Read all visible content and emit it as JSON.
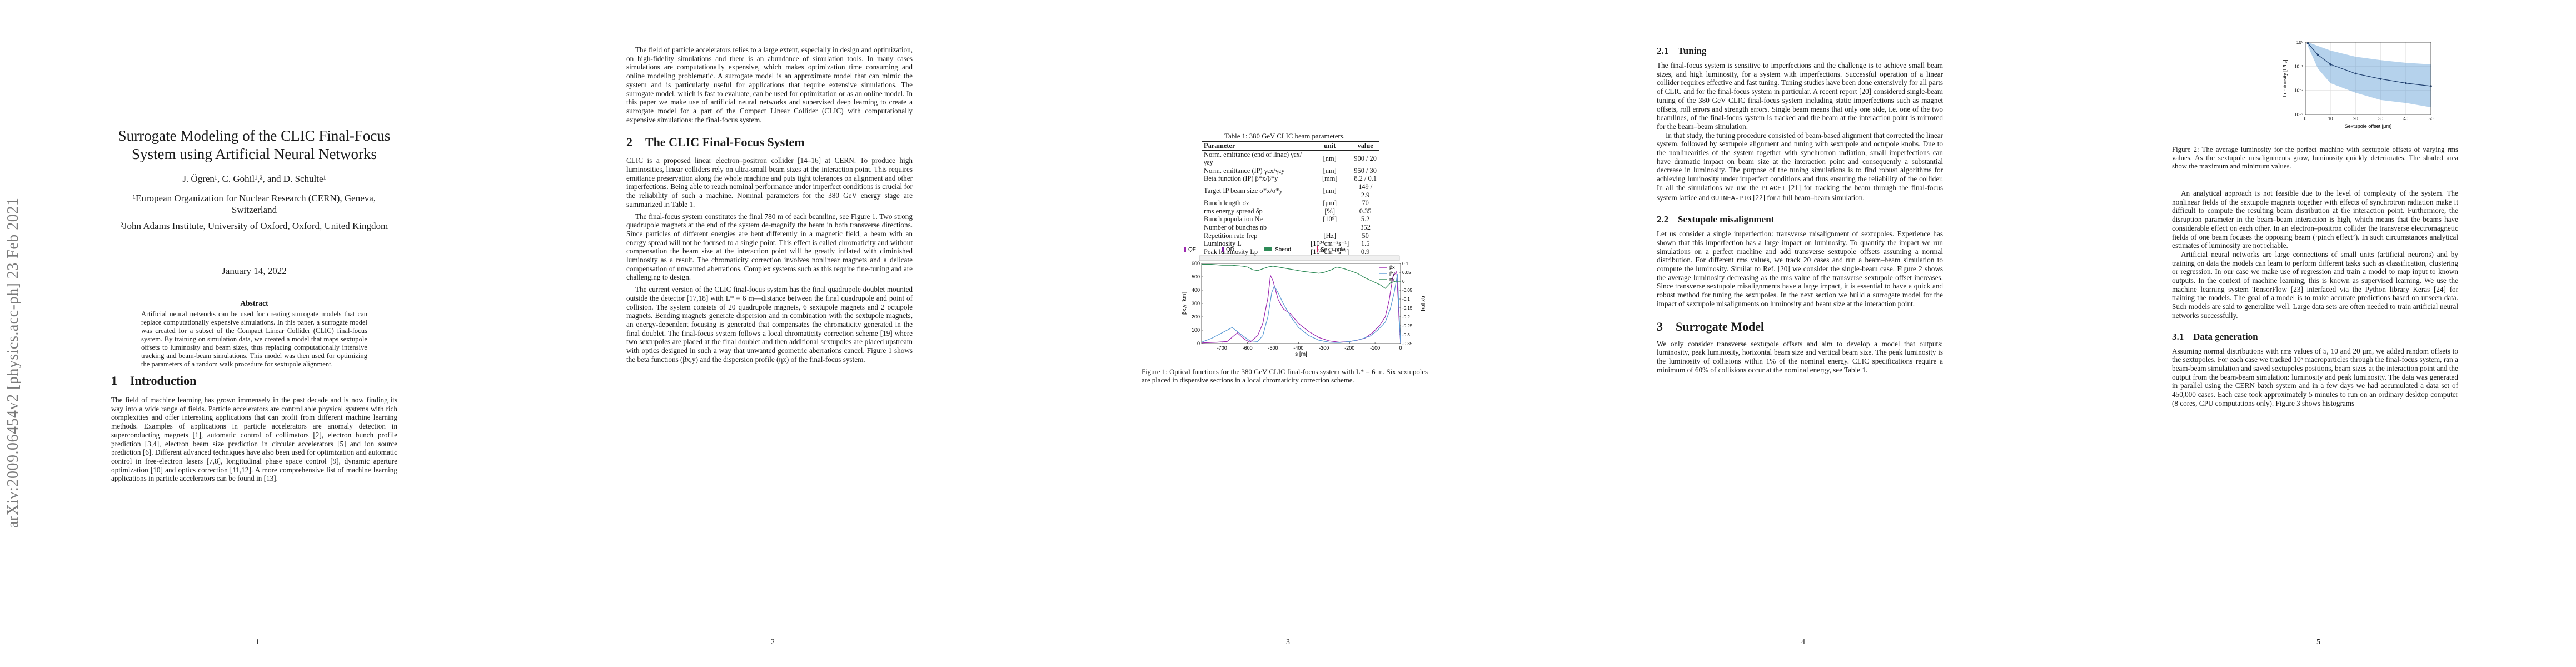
{
  "arxiv_stamp": "arXiv:2009.06454v2  [physics.acc-ph]  23 Feb 2021",
  "page1": {
    "title": "Surrogate Modeling of the CLIC Final-Focus System using Artificial Neural Networks",
    "authors": "J. Ögren¹, C. Gohil¹,², and D. Schulte¹",
    "affiliation1": "¹European Organization for Nuclear Research (CERN), Geneva, Switzerland",
    "affiliation2": "²John Adams Institute, University of Oxford, Oxford, United Kingdom",
    "date": "January 14, 2022",
    "abstract_heading": "Abstract",
    "abstract": "Artificial neural networks can be used for creating surrogate models that can replace computationally expensive simulations. In this paper, a surrogate model was created for a subset of the Compact Linear Collider (CLIC) final-focus system. By training on simulation data, we created a model that maps sextupole offsets to luminosity and beam sizes, thus replacing computationally intensive tracking and beam-beam simulations. This model was then used for optimizing the parameters of a random walk procedure for sextupole alignment.",
    "section1_num": "1",
    "section1_title": "Introduction",
    "intro": "The field of machine learning has grown immensely in the past decade and is now finding its way into a wide range of fields. Particle accelerators are controllable physical systems with rich complexities and offer interesting applications that can profit from different machine learning methods. Examples of applications in particle accelerators are anomaly detection in superconducting magnets [1], automatic control of collimators [2], electron bunch profile prediction [3,4], electron beam size prediction in circular accelerators [5] and ion source prediction [6]. Different advanced techniques have also been used for optimization and automatic control in free-electron lasers [7,8], longitudinal phase space control [9], dynamic aperture optimization [10] and optics correction [11,12]. A more comprehensive list of machine learning applications in particle accelerators can be found in [13].",
    "page_number": "1"
  },
  "page2": {
    "para1": "The field of particle accelerators relies to a large extent, especially in design and optimization, on high-fidelity simulations and there is an abundance of simulation tools. In many cases simulations are computationally expensive, which makes optimization time consuming and online modeling problematic. A surrogate model is an approximate model that can mimic the system and is particularly useful for applications that require extensive simulations. The surrogate model, which is fast to evaluate, can be used for optimization or as an online model. In this paper we make use of artificial neural networks and supervised deep learning to create a surrogate model for a part of the Compact Linear Collider (CLIC) with computationally expensive simulations: the final-focus system.",
    "section2_num": "2",
    "section2_title": "The CLIC Final-Focus System",
    "para2": "CLIC is a proposed linear electron–positron collider [14–16] at CERN. To produce high luminosities, linear colliders rely on ultra-small beam sizes at the interaction point. This requires emittance preservation along the whole machine and puts tight tolerances on alignment and other imperfections. Being able to reach nominal performance under imperfect conditions is crucial for the reliability of such a machine. Nominal parameters for the 380 GeV energy stage are summarized in Table 1.",
    "para3": "The final-focus system constitutes the final 780 m of each beamline, see Figure 1. Two strong quadrupole magnets at the end of the system de-magnify the beam in both transverse directions. Since particles of different energies are bent differently in a magnetic field, a beam with an energy spread will not be focused to a single point. This effect is called chromaticity and without compensation the beam size at the interaction point will be greatly inflated with diminished luminosity as a result. The chromaticity correction involves nonlinear magnets and a delicate compensation of unwanted aberrations. Complex systems such as this require fine-tuning and are challenging to design.",
    "para4": "The current version of the CLIC final-focus system has the final quadrupole doublet mounted outside the detector [17,18] with L* = 6 m—distance between the final quadrupole and point of collision. The system consists of 20 quadrupole magnets, 6 sextupole magnets and 2 octupole magnets. Bending magnets generate dispersion and in combination with the sextupole magnets, an energy-dependent focusing is generated that compensates the chromaticity generated in the final doublet. The final-focus system follows a local chromaticity correction scheme [19] where two sextupoles are placed at the final doublet and then additional sextupoles are placed upstream with optics designed in such a way that unwanted geometric aberrations cancel. Figure 1 shows the beta functions (βx,y) and the dispersion profile (ηx) of the final-focus system.",
    "page_number": "2"
  },
  "page3": {
    "table_caption": "Table 1: 380 GeV CLIC beam parameters.",
    "table_headers": [
      "Parameter",
      "unit",
      "value"
    ],
    "table_rows": [
      [
        "Norm. emittance (end of linac) γεx/γεy",
        "[nm]",
        "900 / 20"
      ],
      [
        "Norm. emittance (IP) γεx/γεy",
        "[nm]",
        "950 / 30"
      ],
      [
        "Beta function (IP) β*x/β*y",
        "[mm]",
        "8.2 / 0.1"
      ],
      [
        "Target IP beam size σ*x/σ*y",
        "[nm]",
        "149 / 2.9"
      ],
      [
        "Bunch length σz",
        "[μm]",
        "70"
      ],
      [
        "rms energy spread δp",
        "[%]",
        "0.35"
      ],
      [
        "Bunch population Ne",
        "[10⁹]",
        "5.2"
      ],
      [
        "Number of bunches nb",
        "",
        "352"
      ],
      [
        "Repetition rate frep",
        "[Hz]",
        "50"
      ],
      [
        "Luminosity L",
        "[10³⁴cm⁻²s⁻¹]",
        "1.5"
      ],
      [
        "Peak luminosity Lp",
        "[10³⁴cm⁻²s⁻¹]",
        "0.9"
      ]
    ],
    "figure1_legend": [
      "QF",
      "QD",
      "Sbend",
      "Sextupole"
    ],
    "figure1_series": [
      "βx",
      "βy",
      "ηx"
    ],
    "figure1_ylabel": "βx,y [km]",
    "figure1_y2label": "ηx [m]",
    "figure1_xlabel": "s [m]",
    "figure1_caption": "Figure 1: Optical functions for the 380 GeV CLIC final-focus system with L* = 6 m. Six sextupoles are placed in dispersive sections in a local chromaticity correction scheme.",
    "page_number": "3"
  },
  "page4": {
    "sub21_num": "2.1",
    "sub21_title": "Tuning",
    "tuning_p1": "The final-focus system is sensitive to imperfections and the challenge is to achieve small beam sizes, and high luminosity, for a system with imperfections. Successful operation of a linear collider requires effective and fast tuning. Tuning studies have been done extensively for all parts of CLIC and for the final-focus system in particular. A recent report [20] considered single-beam tuning of the 380 GeV CLIC final-focus system including static imperfections such as magnet offsets, roll errors and strength errors. Single beam means that only one side, i.e. one of the two beamlines, of the final-focus system is tracked and the beam at the interaction point is mirrored for the beam–beam simulation.",
    "tuning_p2_pre": "In that study, the tuning procedure consisted of beam-based alignment that corrected the linear system, followed by sextupole alignment and tuning with sextupole and octupole knobs. Due to the nonlinearities of the system together with synchrotron radiation, small imperfections can have dramatic impact on beam size at the interaction point and consequently a substantial decrease in luminosity. The purpose of the tuning simulations is to find robust algorithms for achieving luminosity under imperfect conditions and thus ensuring the reliability of the collider. In all the simulations we use the",
    "code_placet": "PLACET",
    "tuning_p2_mid": "[21] for tracking the beam through the final-focus system lattice and",
    "code_guinea": "GUINEA-PIG",
    "tuning_p2_post": "[22] for a full beam–beam simulation.",
    "sub22_num": "2.2",
    "sub22_title": "Sextupole misalignment",
    "sext_p1": "Let us consider a single imperfection: transverse misalignment of sextupoles. Experience has shown that this imperfection has a large impact on luminosity. To quantify the impact we run simulations on a perfect machine and add transverse sextupole offsets assuming a normal distribution. For different rms values, we track 20 cases and run a beam–beam simulation to compute the luminosity. Similar to Ref. [20] we consider the single-beam case. Figure 2 shows the average luminosity decreasing as the rms value of the transverse sextupole offset increases. Since transverse sextupole misalignments have a large impact, it is essential to have a quick and robust method for tuning the sextupoles. In the next section we build a surrogate model for the impact of sextupole misalignments on luminosity and beam size at the interaction point.",
    "section3_num": "3",
    "section3_title": "Surrogate Model",
    "surrogate_p1": "We only consider transverse sextupole offsets and aim to develop a model that outputs: luminosity, peak luminosity, horizontal beam size and vertical beam size. The peak luminosity is the luminosity of collisions within 1% of the nominal energy. CLIC specifications require a minimum of 60% of collisions occur at the nominal energy, see Table 1.",
    "page_number": "4"
  },
  "page5": {
    "figure2_ylabel": "Luminosity [L/L₀]",
    "figure2_xlabel": "Sextupole offset [μm]",
    "figure2_caption": "Figure 2: The average luminosity for the perfect machine with sextupole offsets of varying rms values. As the sextupole misalignments grow, luminosity quickly deteriorates. The shaded area show the maximum and minimum values.",
    "p1": "An analytical approach is not feasible due to the level of complexity of the system. The nonlinear fields of the sextupole magnets together with effects of synchrotron radiation make it difficult to compute the resulting beam distribution at the interaction point. Furthermore, the disruption parameter in the beam–beam interaction is high, which means that the beams have considerable effect on each other. In an electron–positron collider the transverse electromagnetic fields of one beam focuses the opposing beam (‘pinch effect’). In such circumstances analytical estimates of luminosity are not reliable.",
    "p2": "Artificial neural networks are large connections of small units (artificial neurons) and by training on data the models can learn to perform different tasks such as classification, clustering or regression. In our case we make use of regression and train a model to map input to known outputs. In the context of machine learning, this is known as supervised learning. We use the machine learning system TensorFlow [23] interfaced via the Python library Keras [24] for training the models. The goal of a model is to make accurate predictions based on unseen data. Such models are said to generalize well. Large data sets are often needed to train artificial neural networks successfully.",
    "sub31_num": "3.1",
    "sub31_title": "Data generation",
    "p3": "Assuming normal distributions with rms values of 5, 10 and 20 μm, we added random offsets to the sextupoles. For each case we tracked 10⁵ macroparticles through the final-focus system, ran a beam-beam simulation and saved sextupoles positions, beam sizes at the interaction point and the output from the beam-beam simulation: luminosity and peak luminosity. The data was generated in parallel using the CERN batch system and in a few days we had accumulated a data set of 450,000 cases. Each case took approximately 5 minutes to run on an ordinary desktop computer (8 cores, CPU computations only). Figure 3 shows histograms",
    "page_number": "5"
  },
  "chart_data": [
    {
      "type": "line",
      "title": "",
      "xlabel": "s [m]",
      "ylabel": "βx,y [km]",
      "y2label": "ηx [m]",
      "xlim": [
        -780,
        0
      ],
      "ylim": [
        0,
        600
      ],
      "y2lim": [
        -0.35,
        0.1
      ],
      "xticks": [
        -700,
        -600,
        -500,
        -400,
        -300,
        -200,
        -100,
        0
      ],
      "yticks": [
        0,
        100,
        200,
        300,
        400,
        500,
        600
      ],
      "y2ticks": [
        0.1,
        0.05,
        0,
        -0.05,
        -0.1,
        -0.15,
        -0.2,
        -0.25,
        -0.3,
        -0.35
      ],
      "series": [
        {
          "name": "βx",
          "axis": "left",
          "x": [
            -780,
            -720,
            -680,
            -640,
            -610,
            -590,
            -560,
            -540,
            -520,
            -510,
            -500,
            -480,
            -460,
            -430,
            -400,
            -360,
            -320,
            -280,
            -240,
            -200,
            -170,
            -140,
            -110,
            -80,
            -60,
            -45,
            -30,
            -15,
            -5,
            0
          ],
          "y": [
            5,
            10,
            15,
            80,
            30,
            10,
            60,
            150,
            340,
            510,
            470,
            330,
            260,
            220,
            150,
            90,
            45,
            20,
            10,
            15,
            25,
            40,
            80,
            140,
            200,
            320,
            500,
            540,
            150,
            2
          ]
        },
        {
          "name": "βy",
          "axis": "left",
          "x": [
            -780,
            -740,
            -700,
            -660,
            -620,
            -590,
            -560,
            -540,
            -520,
            -505,
            -495,
            -480,
            -460,
            -430,
            -400,
            -360,
            -320,
            -280,
            -240,
            -200,
            -160,
            -120,
            -90,
            -60,
            -40,
            -25,
            -12,
            -5,
            0
          ],
          "y": [
            10,
            40,
            80,
            120,
            60,
            20,
            15,
            60,
            200,
            380,
            430,
            380,
            300,
            200,
            120,
            60,
            25,
            10,
            8,
            15,
            30,
            55,
            100,
            160,
            260,
            380,
            520,
            200,
            2
          ]
        },
        {
          "name": "ηx",
          "axis": "right",
          "x": [
            -780,
            -740,
            -700,
            -660,
            -620,
            -600,
            -580,
            -560,
            -540,
            -520,
            -500,
            -480,
            -460,
            -440,
            -420,
            -400,
            -380,
            -350,
            -320,
            -300,
            -270,
            -250,
            -220,
            -200,
            -170,
            -140,
            -110,
            -80,
            -60,
            -40,
            -20,
            0
          ],
          "y": [
            0.095,
            0.095,
            0.09,
            0.09,
            0.085,
            0.08,
            0.065,
            0.06,
            0.07,
            0.08,
            0.085,
            0.08,
            0.075,
            0.07,
            0.065,
            0.06,
            0.055,
            0.05,
            0.045,
            0.05,
            0.065,
            0.08,
            0.07,
            0.06,
            0.045,
            0.02,
            0.0,
            -0.02,
            -0.04,
            -0.01,
            0.0,
            0.0
          ]
        }
      ],
      "legend": [
        "βx",
        "βy",
        "ηx"
      ],
      "legend_position": "top-right",
      "lattice_legend": [
        "QF",
        "QD",
        "Sbend",
        "Sextupole"
      ]
    },
    {
      "type": "line",
      "title": "",
      "xlabel": "Sextupole offset [μm]",
      "ylabel": "Luminosity [L/L₀]",
      "xlim": [
        0,
        50
      ],
      "ylim": [
        0.001,
        1
      ],
      "yscale": "log",
      "xticks": [
        0,
        10,
        20,
        30,
        40,
        50
      ],
      "yticks": [
        0.001,
        0.01,
        0.1,
        1
      ],
      "ytick_labels": [
        "10⁻³",
        "10⁻²",
        "10⁻¹",
        "10⁰"
      ],
      "series": [
        {
          "name": "mean",
          "x": [
            1,
            5,
            10,
            20,
            30,
            40,
            50
          ],
          "y": [
            0.9,
            0.3,
            0.12,
            0.05,
            0.03,
            0.02,
            0.015
          ]
        },
        {
          "name": "min",
          "x": [
            1,
            5,
            10,
            20,
            30,
            40,
            50
          ],
          "y": [
            0.7,
            0.08,
            0.02,
            0.008,
            0.004,
            0.003,
            0.002
          ]
        },
        {
          "name": "max",
          "x": [
            1,
            5,
            10,
            20,
            30,
            40,
            50
          ],
          "y": [
            1.0,
            0.7,
            0.45,
            0.25,
            0.18,
            0.14,
            0.12
          ]
        }
      ],
      "grid": true
    }
  ]
}
